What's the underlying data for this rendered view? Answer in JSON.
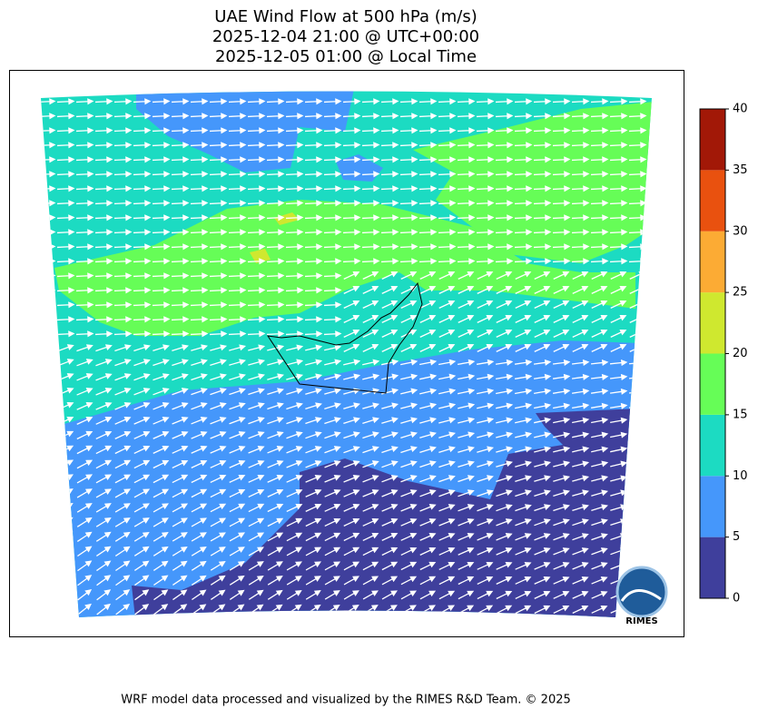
{
  "title": {
    "line1": "UAE Wind Flow at 500 hPa (m/s)",
    "line2": "2025-12-04 21:00 @ UTC+00:00",
    "line3": "2025-12-05 01:00 @ Local Time"
  },
  "colorbar": {
    "ticks": [
      0,
      5,
      10,
      15,
      20,
      25,
      30,
      35,
      40
    ],
    "colors": [
      "#3f3f9c",
      "#4597fb",
      "#1cdbc2",
      "#66fd57",
      "#cfe82f",
      "#fcab34",
      "#e9510f",
      "#a21807"
    ]
  },
  "logo": {
    "text": "RIMES"
  },
  "footer": "WRF model data processed and visualized by the RIMES R&D Team. © 2025"
}
